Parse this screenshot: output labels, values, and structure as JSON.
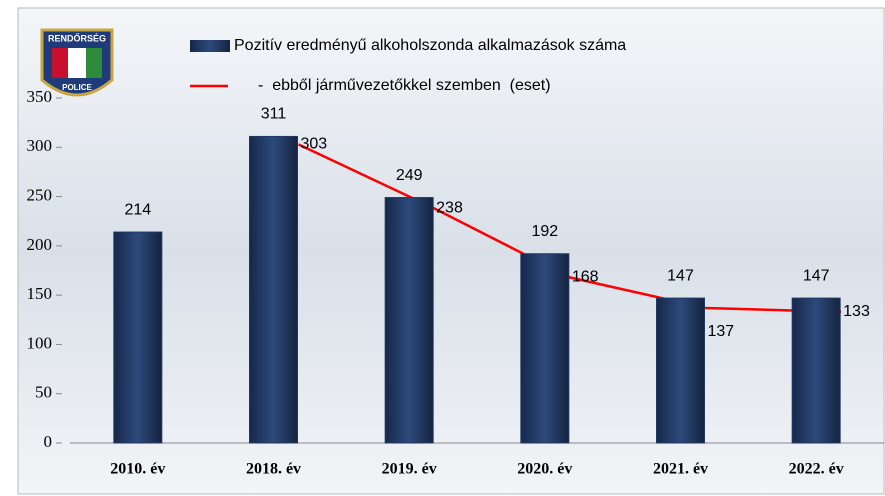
{
  "logo": {
    "top": "RENDŐRSÉG",
    "bottom": "POLICE"
  },
  "chart_data": {
    "type": "bar",
    "categories": [
      "2010. év",
      "2018. év",
      "2019. év",
      "2020. év",
      "2021. év",
      "2022. év"
    ],
    "series": [
      {
        "name": "Pozitív eredményű alkoholszonda alkalmazások száma",
        "type": "bar",
        "color": "#1f3864",
        "values": [
          214,
          311,
          249,
          192,
          147,
          147
        ]
      },
      {
        "name": "-  ebből járművezetőkkel szemben  (eset)",
        "type": "line",
        "color": "#ff0000",
        "values": [
          null,
          303,
          238,
          168,
          137,
          133
        ]
      }
    ],
    "ylim": [
      0,
      350
    ],
    "yticks": [
      0,
      50,
      100,
      150,
      200,
      250,
      300,
      350
    ],
    "grid": false,
    "legend": "top"
  }
}
